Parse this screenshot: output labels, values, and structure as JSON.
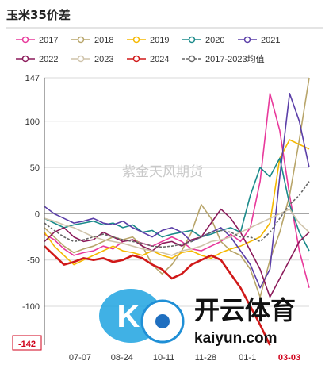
{
  "chart_data": {
    "type": "line",
    "title": "玉米35价差",
    "xlabel": "",
    "ylabel": "",
    "ylim": [
      -142,
      147
    ],
    "y_ticks": [
      147,
      100,
      50,
      0,
      -50,
      -100
    ],
    "y_min_label": "-142",
    "x_ticks": [
      "07-07",
      "08-24",
      "10-11",
      "11-28",
      "01-1",
      "03-03"
    ],
    "highlight_x_tick": "03-03",
    "grid": "horizontal",
    "legend_position": "top",
    "watermark": "紫金天风期货",
    "series": [
      {
        "name": "2017",
        "color": "#e8399b",
        "dash": false,
        "values": [
          -22,
          -28,
          -38,
          -45,
          -42,
          -40,
          -35,
          -38,
          -30,
          -28,
          -32,
          -35,
          -30,
          -25,
          -30,
          -38,
          -40,
          -35,
          -30,
          -22,
          -30,
          -15,
          35,
          130,
          90,
          20,
          -40,
          -80
        ]
      },
      {
        "name": "2018",
        "color": "#b8a56a",
        "dash": false,
        "values": [
          -15,
          -25,
          -35,
          -42,
          -38,
          -35,
          -30,
          -25,
          -28,
          -25,
          -35,
          -55,
          -65,
          -55,
          -40,
          -20,
          10,
          -5,
          -30,
          -40,
          -45,
          -60,
          -90,
          -50,
          -20,
          20,
          80,
          147
        ]
      },
      {
        "name": "2019",
        "color": "#f5b800",
        "dash": false,
        "values": [
          -20,
          -35,
          -45,
          -55,
          -50,
          -45,
          -40,
          -35,
          -40,
          -42,
          -45,
          -40,
          -45,
          -48,
          -42,
          -40,
          -45,
          -48,
          -42,
          -38,
          -35,
          -30,
          -25,
          -10,
          60,
          80,
          75,
          70
        ]
      },
      {
        "name": "2020",
        "color": "#1a8a8a",
        "dash": false,
        "values": [
          -5,
          -10,
          -15,
          -12,
          -10,
          -8,
          -12,
          -10,
          -15,
          -12,
          -20,
          -18,
          -25,
          -22,
          -20,
          -18,
          -25,
          -22,
          -18,
          -15,
          -20,
          20,
          50,
          40,
          60,
          10,
          -20,
          -40
        ]
      },
      {
        "name": "2021",
        "color": "#5b3fa8",
        "dash": false,
        "values": [
          8,
          0,
          -5,
          -10,
          -8,
          -5,
          -10,
          -12,
          -8,
          -15,
          -20,
          -25,
          -18,
          -15,
          -20,
          -30,
          -25,
          -20,
          -15,
          -25,
          -40,
          -55,
          -80,
          -60,
          40,
          130,
          100,
          50
        ]
      },
      {
        "name": "2022",
        "color": "#8b1a5a",
        "dash": false,
        "values": [
          -30,
          -20,
          -15,
          -25,
          -30,
          -28,
          -20,
          -25,
          -30,
          -28,
          -35,
          -40,
          -32,
          -30,
          -35,
          -28,
          -25,
          -10,
          5,
          -5,
          -20,
          -40,
          -60,
          -90,
          -70,
          -50,
          -30,
          -20
        ]
      },
      {
        "name": "2023",
        "color": "#cfc3aa",
        "dash": false,
        "values": [
          -5,
          -8,
          -12,
          -15,
          -20,
          -25,
          -28,
          -30,
          -32,
          -35,
          -38,
          -40,
          -42,
          -45,
          -40,
          -38,
          -35,
          -30,
          -28,
          -25,
          -20,
          -15,
          -10,
          -5,
          0,
          5,
          -10,
          -20
        ]
      },
      {
        "name": "2024",
        "color": "#d01818",
        "dash": false,
        "values": [
          -35,
          -45,
          -55,
          -52,
          -48,
          -50,
          -48,
          -52,
          -50,
          -45,
          -48,
          -55,
          -60,
          -70,
          -65,
          -55,
          -50,
          -45,
          -50,
          -65,
          -80,
          -100,
          -120,
          -142
        ]
      },
      {
        "name": "2017-2023均值",
        "color": "#666666",
        "dash": true,
        "values": [
          -10,
          -18,
          -25,
          -30,
          -28,
          -25,
          -22,
          -25,
          -28,
          -30,
          -32,
          -35,
          -36,
          -35,
          -33,
          -30,
          -25,
          -20,
          -18,
          -20,
          -25,
          -25,
          -30,
          -20,
          -5,
          10,
          20,
          35
        ]
      }
    ]
  },
  "branding": {
    "logo_mark": "K",
    "logo_text": "开云体育",
    "logo_sub": "kaiyun.com"
  }
}
